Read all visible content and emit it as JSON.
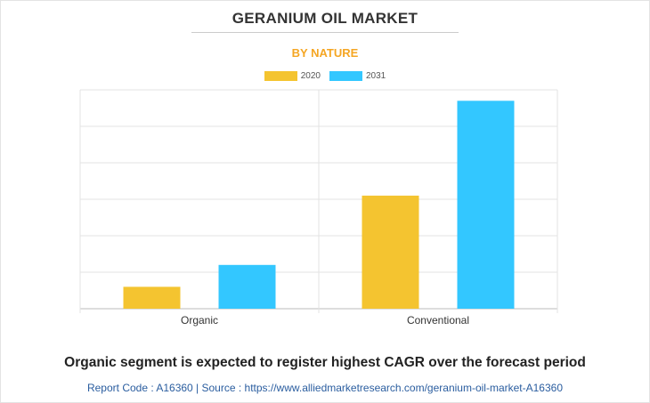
{
  "header": {
    "title": "GERANIUM OIL MARKET",
    "subtitle": "BY NATURE"
  },
  "colors": {
    "subtitle": "#f5a623",
    "series_2020": "#f4c430",
    "series_2031": "#33c7ff",
    "grid": "#e3e3e3",
    "axis": "#bbbbbb",
    "tick_label": "#333333"
  },
  "chart_data": {
    "type": "bar",
    "categories": [
      "Organic",
      "Conventional"
    ],
    "series": [
      {
        "name": "2020",
        "values": [
          0.6,
          3.1
        ]
      },
      {
        "name": "2031",
        "values": [
          1.2,
          5.7
        ]
      }
    ],
    "ylim": [
      0,
      6
    ],
    "grid": true,
    "legend": "top-center"
  },
  "footer": {
    "headline": "Organic segment is expected to register highest CAGR over the forecast period",
    "source": "Report Code : A16360  |  Source : https://www.alliedmarketresearch.com/geranium-oil-market-A16360"
  }
}
